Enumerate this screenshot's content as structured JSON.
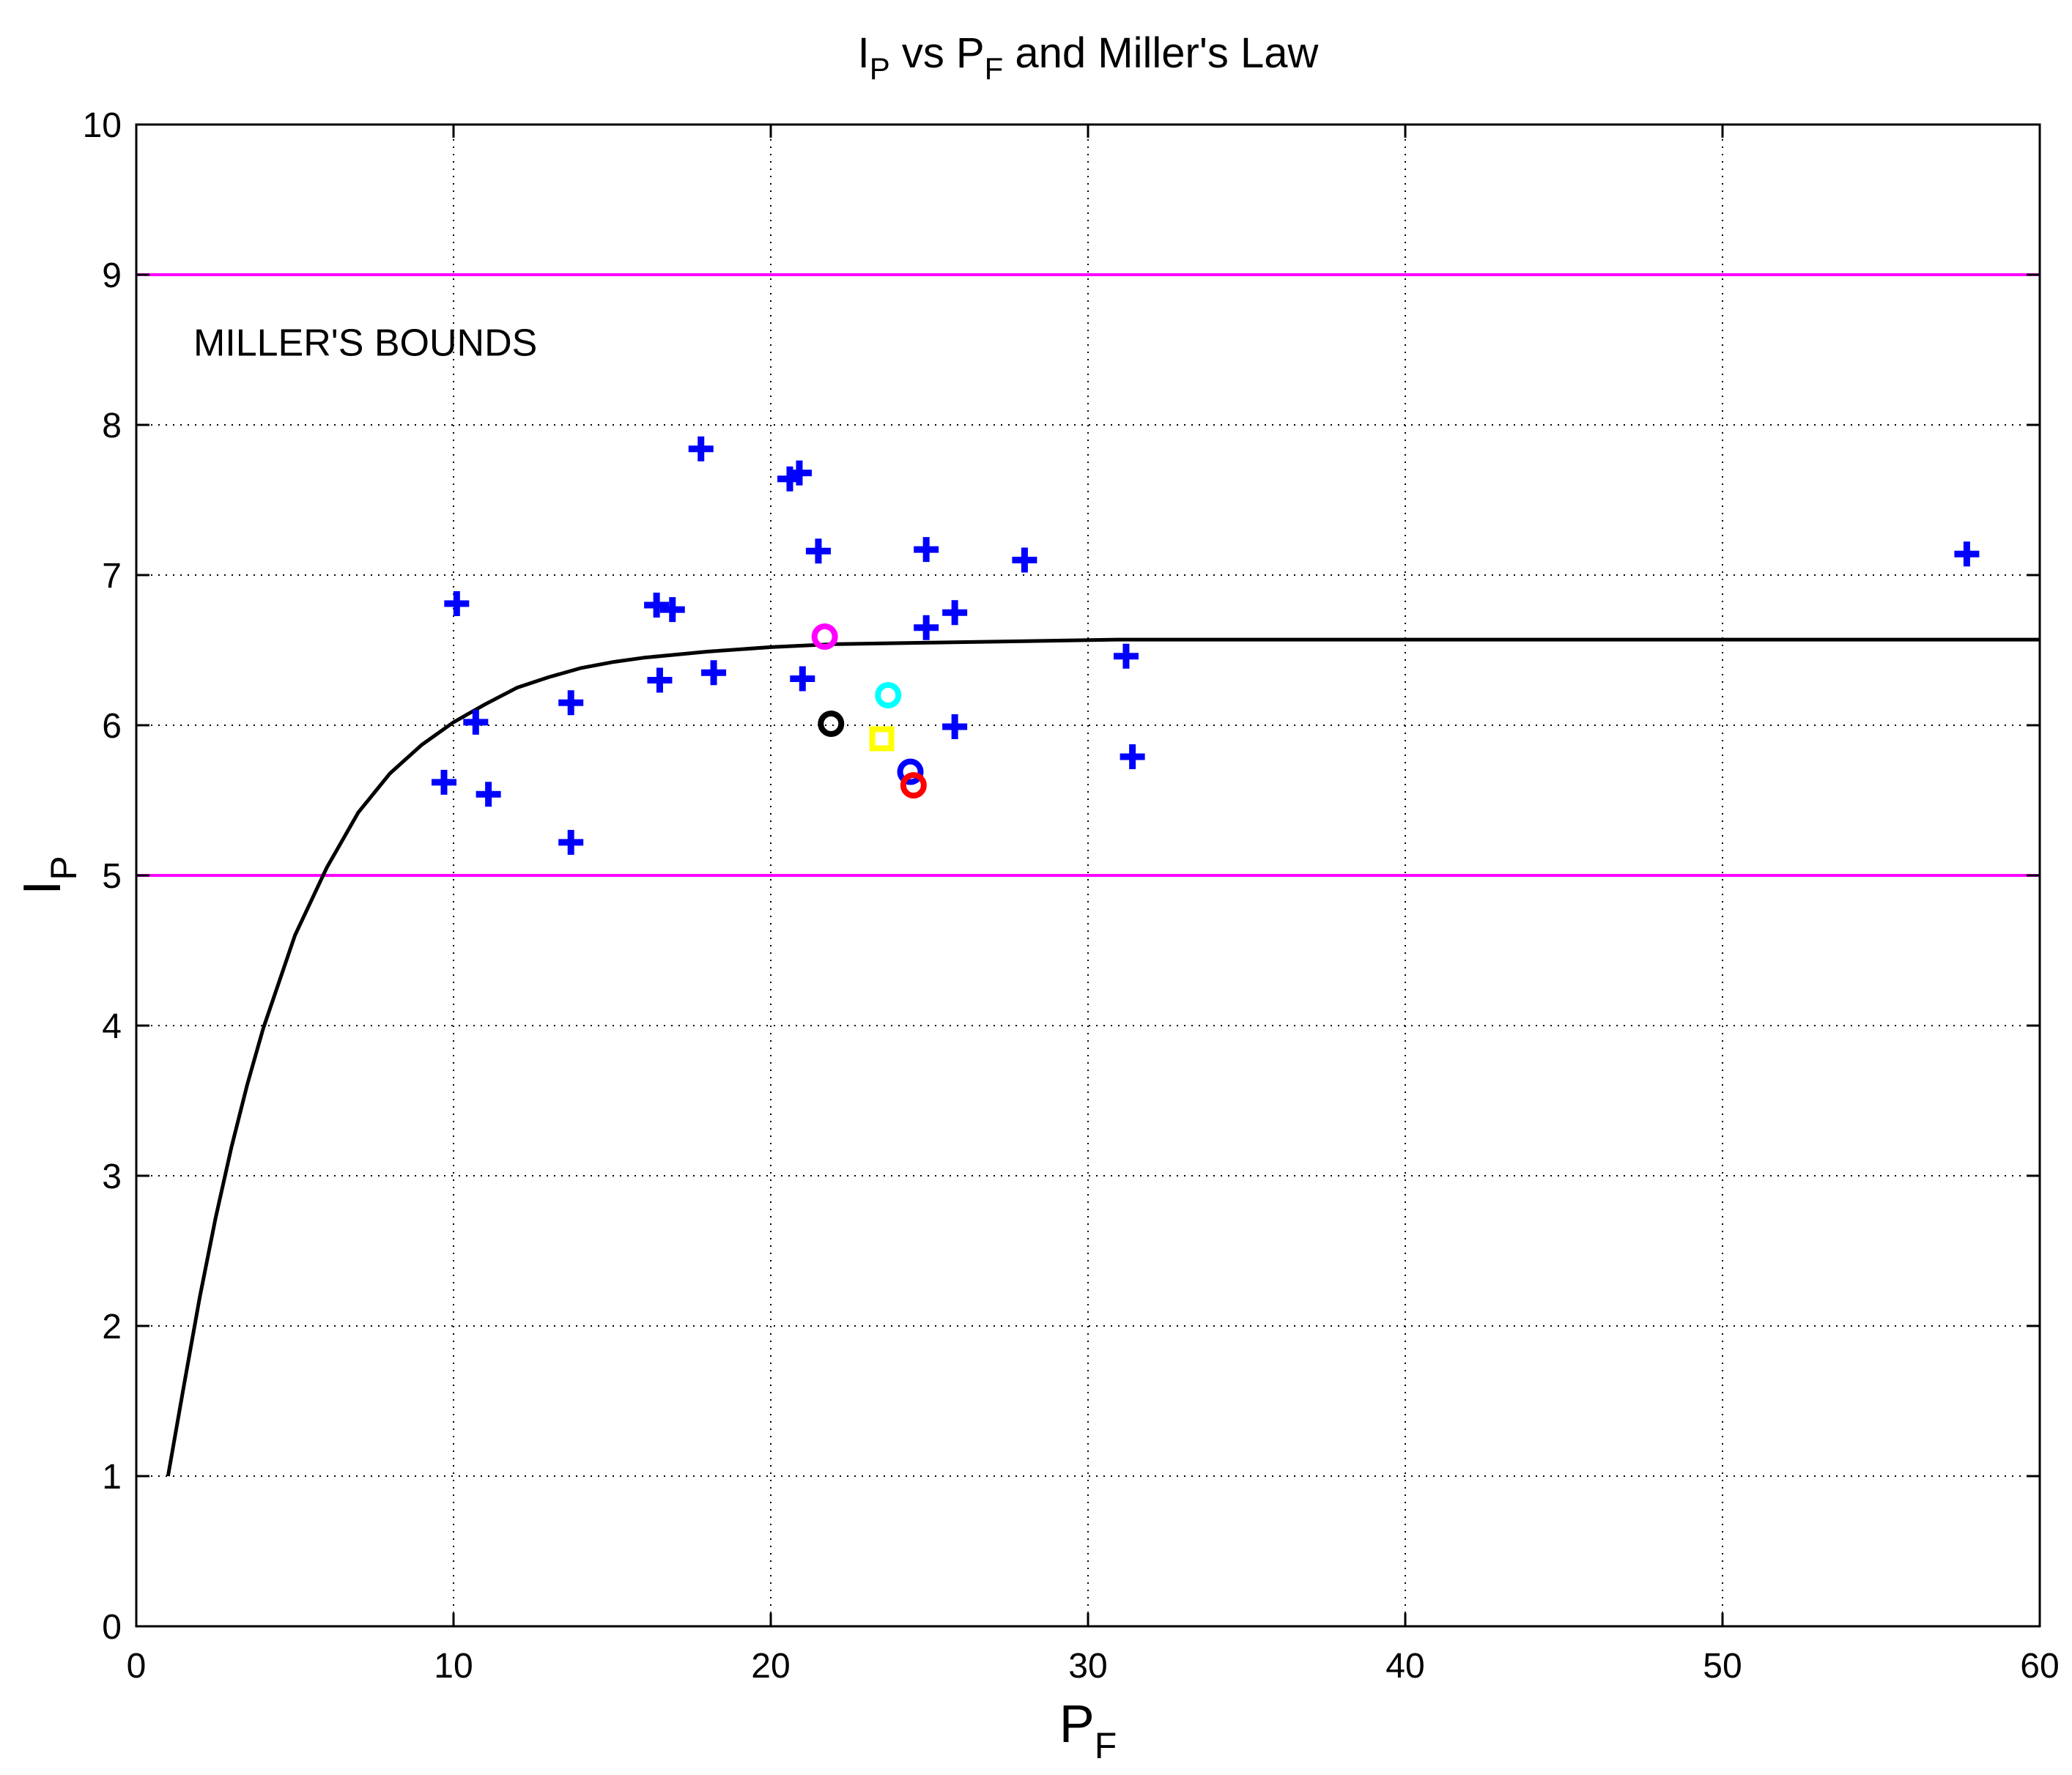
{
  "chart_data": {
    "type": "scatter",
    "title": {
      "parts": [
        {
          "text": "I",
          "sub": false
        },
        {
          "text": "P",
          "sub": true
        },
        {
          "text": " vs P",
          "sub": false
        },
        {
          "text": "F",
          "sub": true
        },
        {
          "text": " and Miller's Law",
          "sub": false
        }
      ]
    },
    "xlabel": {
      "main": "P",
      "sub": "F"
    },
    "ylabel": {
      "main": "I",
      "sub": "P"
    },
    "xlim": [
      0,
      60
    ],
    "ylim": [
      0,
      10
    ],
    "xticks": [
      0,
      10,
      20,
      30,
      40,
      50,
      60
    ],
    "yticks": [
      0,
      1,
      2,
      3,
      4,
      5,
      6,
      7,
      8,
      9,
      10
    ],
    "grid": true,
    "annotation": {
      "text": "MILLER'S BOUNDS",
      "x": 1.8,
      "y": 8.55
    },
    "bounds": {
      "values": [
        5,
        9
      ],
      "color": "#ff00ff"
    },
    "curve": {
      "color": "#000000",
      "x": [
        1,
        1.5,
        2,
        2.5,
        3,
        3.5,
        4,
        5,
        6,
        7,
        8,
        9,
        10,
        11,
        12,
        13,
        14,
        15,
        16,
        18,
        20,
        22,
        25,
        28,
        31,
        35,
        40,
        45,
        50,
        55,
        60
      ],
      "y": [
        1.0,
        1.6,
        2.19,
        2.72,
        3.19,
        3.61,
        3.98,
        4.6,
        5.05,
        5.42,
        5.68,
        5.87,
        6.02,
        6.14,
        6.25,
        6.32,
        6.38,
        6.42,
        6.45,
        6.49,
        6.52,
        6.54,
        6.55,
        6.56,
        6.57,
        6.57,
        6.57,
        6.57,
        6.57,
        6.57,
        6.57
      ]
    },
    "series": [
      {
        "marker": "plus",
        "color": "#0000ff",
        "points": [
          {
            "x": 17.8,
            "y": 7.84
          },
          {
            "x": 20.6,
            "y": 7.64
          },
          {
            "x": 20.9,
            "y": 7.68
          },
          {
            "x": 10.1,
            "y": 6.81
          },
          {
            "x": 16.4,
            "y": 6.8
          },
          {
            "x": 16.9,
            "y": 6.77
          },
          {
            "x": 21.5,
            "y": 7.16
          },
          {
            "x": 24.9,
            "y": 7.17
          },
          {
            "x": 28.0,
            "y": 7.1
          },
          {
            "x": 57.7,
            "y": 7.14
          },
          {
            "x": 25.8,
            "y": 6.75
          },
          {
            "x": 24.9,
            "y": 6.65
          },
          {
            "x": 31.2,
            "y": 6.46
          },
          {
            "x": 18.2,
            "y": 6.35
          },
          {
            "x": 16.5,
            "y": 6.3
          },
          {
            "x": 21.0,
            "y": 6.31
          },
          {
            "x": 13.7,
            "y": 6.15
          },
          {
            "x": 10.7,
            "y": 6.02
          },
          {
            "x": 25.8,
            "y": 5.99
          },
          {
            "x": 31.4,
            "y": 5.79
          },
          {
            "x": 9.7,
            "y": 5.62
          },
          {
            "x": 11.1,
            "y": 5.54
          },
          {
            "x": 13.7,
            "y": 5.22
          }
        ]
      },
      {
        "marker": "circle",
        "color": "#ff00ff",
        "points": [
          {
            "x": 21.7,
            "y": 6.59
          }
        ]
      },
      {
        "marker": "circle",
        "color": "#00ffff",
        "points": [
          {
            "x": 23.7,
            "y": 6.2
          }
        ]
      },
      {
        "marker": "circle",
        "color": "#000000",
        "points": [
          {
            "x": 21.9,
            "y": 6.01
          }
        ]
      },
      {
        "marker": "square",
        "color": "#ffff00",
        "points": [
          {
            "x": 23.5,
            "y": 5.91
          }
        ]
      },
      {
        "marker": "circle",
        "color": "#0000ff",
        "points": [
          {
            "x": 24.4,
            "y": 5.69
          }
        ]
      },
      {
        "marker": "circle",
        "color": "#ff0000",
        "points": [
          {
            "x": 24.5,
            "y": 5.6
          }
        ]
      }
    ]
  }
}
